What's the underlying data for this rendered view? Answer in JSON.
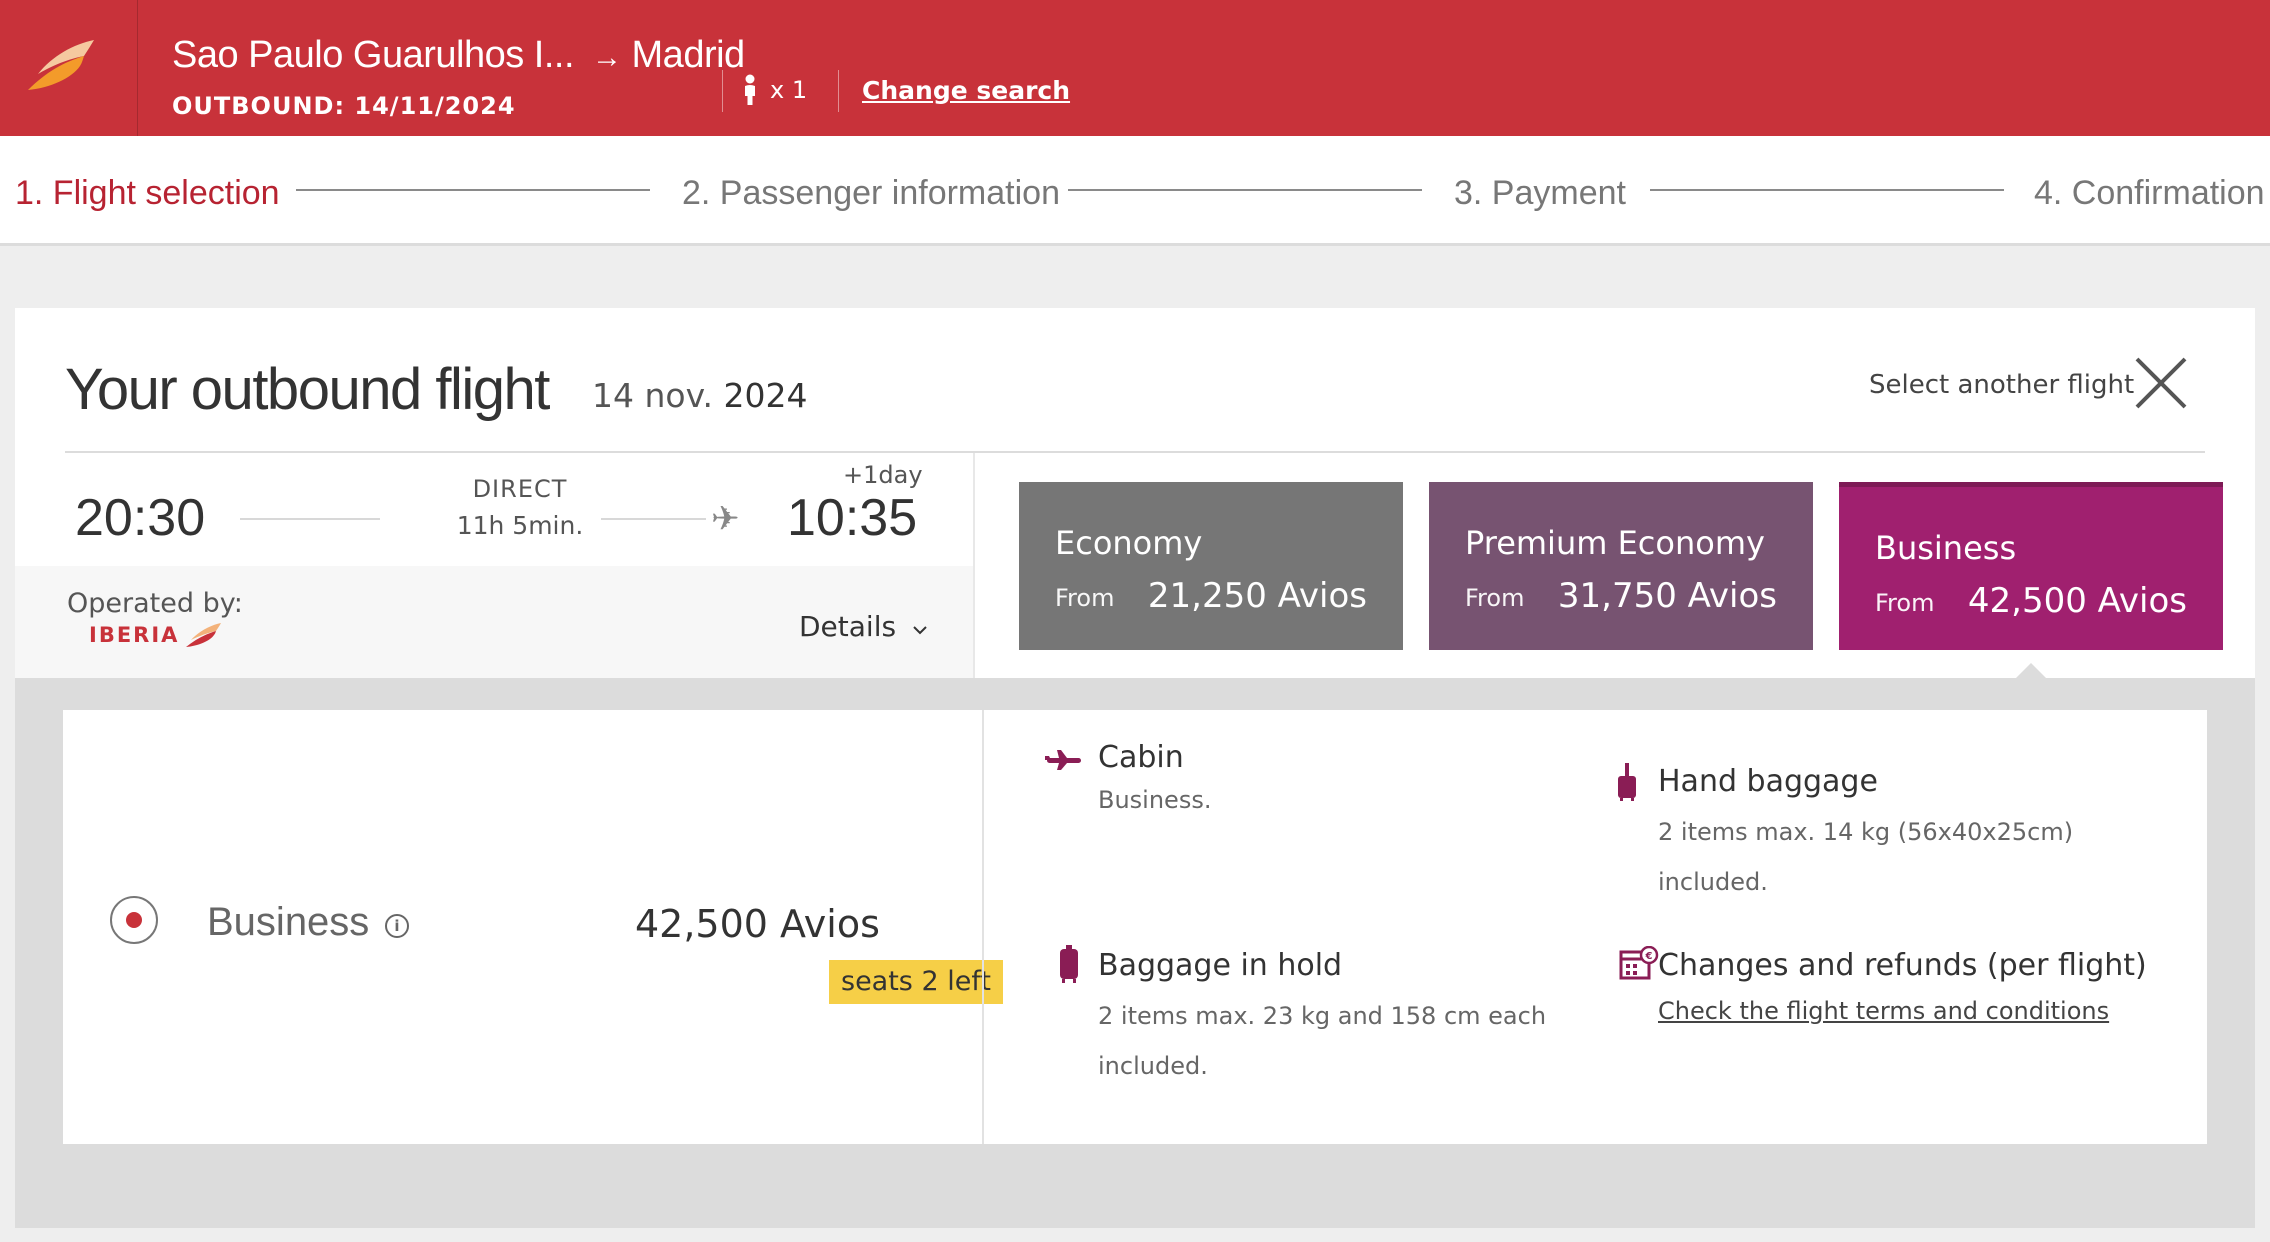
{
  "header": {
    "origin": "Sao Paulo Guarulhos I...",
    "arrow": "→",
    "destination": "Madrid",
    "outbound_label": "OUTBOUND: 14/11/2024",
    "passengers": "x 1",
    "change_search": "Change search"
  },
  "steps": [
    {
      "label": "1. Flight selection",
      "active": true
    },
    {
      "label": "2. Passenger information",
      "active": false
    },
    {
      "label": "3. Payment",
      "active": false
    },
    {
      "label": "4. Confirmation",
      "active": false
    }
  ],
  "flight": {
    "title": "Your outbound flight",
    "date": "14 nov.",
    "year": "2024",
    "select_another": "Select another flight",
    "departure": "20:30",
    "arrival": "10:35",
    "plus_day": "+1day",
    "type": "DIRECT",
    "duration": "11h 5min.",
    "operated_by": "Operated by:",
    "airline": "IBERIA",
    "details": "Details"
  },
  "fares": [
    {
      "name": "Economy",
      "from": "From",
      "price": "21,250 Avios",
      "color": "#767676"
    },
    {
      "name": "Premium Economy",
      "from": "From",
      "price": "31,750 Avios",
      "color": "#775371"
    },
    {
      "name": "Business",
      "from": "From",
      "price": "42,500 Avios",
      "color": "#a0206f"
    }
  ],
  "selected_fare": {
    "name": "Business",
    "price": "42,500 Avios",
    "seats_left": "seats 2 left"
  },
  "features": {
    "cabin": {
      "title": "Cabin",
      "desc": "Business."
    },
    "hand_baggage": {
      "title": "Hand baggage",
      "desc1": "2 items max. 14 kg (56x40x25cm)",
      "desc2": "included."
    },
    "hold_baggage": {
      "title": "Baggage in hold",
      "desc1": "2 items max. 23 kg and 158 cm each",
      "desc2": "included."
    },
    "changes": {
      "title": "Changes and refunds (per flight)",
      "link": "Check the flight terms and conditions"
    }
  },
  "colors": {
    "brand_red": "#c8323a",
    "business_purple": "#a0206f",
    "seats_badge": "#f6cf47"
  }
}
